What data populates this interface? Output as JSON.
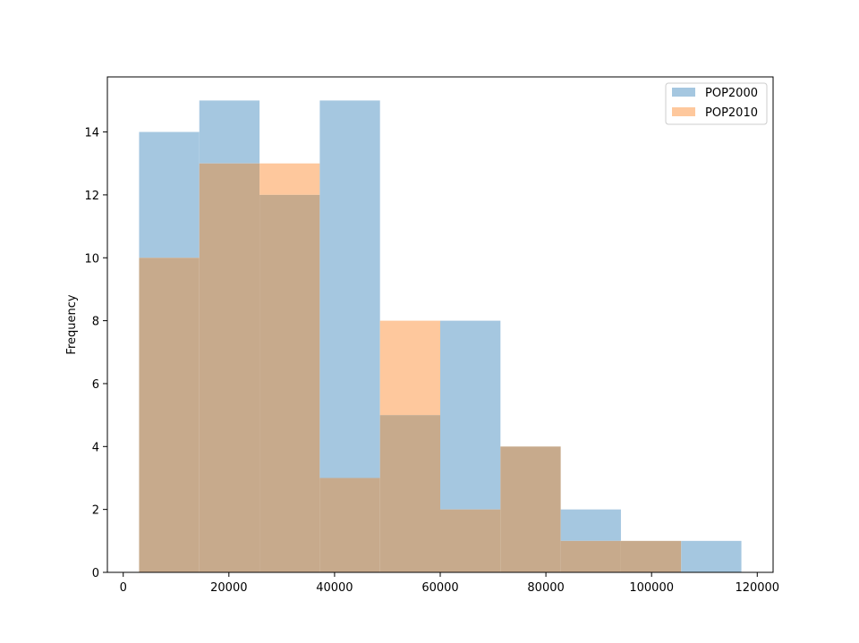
{
  "chart_data": {
    "type": "histogram",
    "title": "",
    "xlabel": "",
    "ylabel": "Frequency",
    "xlim": [
      -3000,
      123000
    ],
    "ylim": [
      0,
      15.75
    ],
    "xticks": [
      0,
      20000,
      40000,
      60000,
      80000,
      100000,
      120000
    ],
    "yticks": [
      0,
      2,
      4,
      6,
      8,
      10,
      12,
      14
    ],
    "grid": false,
    "legend_position": "top-right",
    "overlap_color": "#c7aa8c",
    "series": [
      {
        "name": "POP2000",
        "color": "#a5c7e0",
        "bins": [
          [
            3000,
            14400,
            14
          ],
          [
            14400,
            25800,
            15
          ],
          [
            25800,
            37200,
            12
          ],
          [
            37200,
            48600,
            15
          ],
          [
            48600,
            60000,
            5
          ],
          [
            60000,
            71400,
            8
          ],
          [
            71400,
            82800,
            4
          ],
          [
            82800,
            94200,
            2
          ],
          [
            94200,
            105600,
            1
          ],
          [
            105600,
            117000,
            1
          ]
        ]
      },
      {
        "name": "POP2010",
        "color": "#fec89d",
        "bins": [
          [
            3000,
            14400,
            10
          ],
          [
            14400,
            25800,
            13
          ],
          [
            25800,
            37200,
            13
          ],
          [
            37200,
            48600,
            3
          ],
          [
            48600,
            60000,
            8
          ],
          [
            60000,
            71400,
            2
          ],
          [
            71400,
            82800,
            4
          ],
          [
            82800,
            94200,
            1
          ],
          [
            94200,
            105600,
            1
          ]
        ]
      }
    ]
  }
}
